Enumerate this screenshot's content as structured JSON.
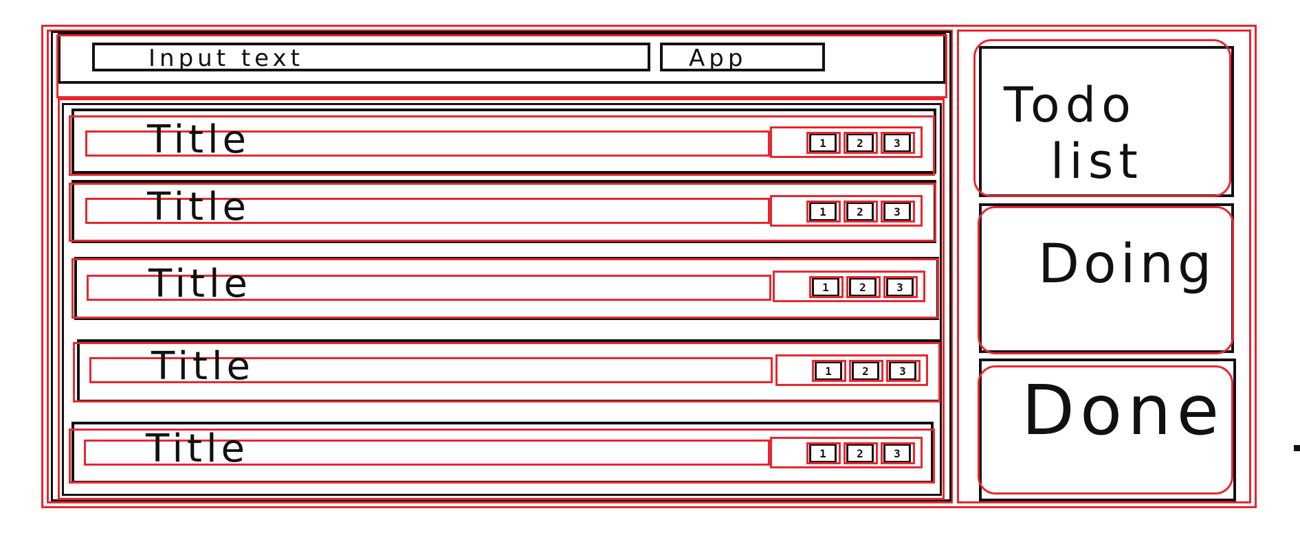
{
  "input": {
    "text": "Input text",
    "add_label": "App"
  },
  "tasks": [
    {
      "title": "Title",
      "b1": "1",
      "b2": "2",
      "b3": "3"
    },
    {
      "title": "Title",
      "b1": "1",
      "b2": "2",
      "b3": "3"
    },
    {
      "title": "Title",
      "b1": "1",
      "b2": "2",
      "b3": "3"
    },
    {
      "title": "Title",
      "b1": "1",
      "b2": "2",
      "b3": "3"
    },
    {
      "title": "Title",
      "b1": "1",
      "b2": "2",
      "b3": "3"
    }
  ],
  "status_panel": {
    "todo_line1": "Todo",
    "todo_line2": "list",
    "doing": "Doing",
    "done": "Done"
  },
  "colors": {
    "annotation": "#e8262f",
    "ink": "#111111"
  }
}
